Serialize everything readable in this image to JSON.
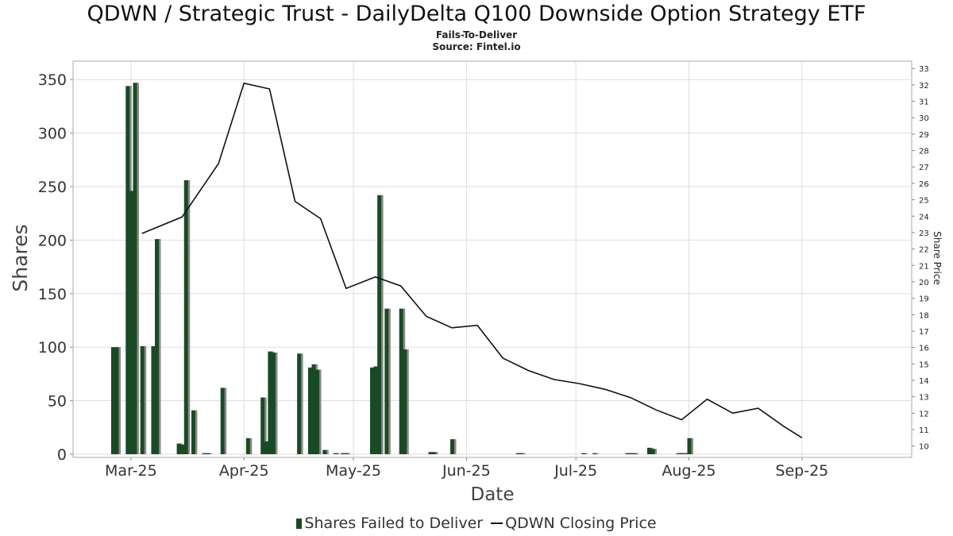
{
  "title": "QDWN / Strategic Trust - DailyDelta Q100 Downside Option Strategy ETF",
  "subtitle": "Fails-To-Deliver",
  "source": "Source: Fintel.io",
  "legend": {
    "bars_label": "Shares Failed to Deliver",
    "line_label": "QDWN Closing Price"
  },
  "colors": {
    "bar": "#1a4a25",
    "bar_shadow": "#8a8a8a",
    "line": "#111111",
    "grid": "#dddddd"
  },
  "chart_data": {
    "type": "bar",
    "xlabel": "Date",
    "ylabel": "Shares",
    "y2label": "Share Price",
    "ylim": [
      0,
      365
    ],
    "y2lim": [
      9.5,
      33.3
    ],
    "xlim": [
      "2025-02-14",
      "2025-09-30"
    ],
    "grid": true,
    "legend_position": "bottom",
    "yticks": [
      0,
      50,
      100,
      150,
      200,
      250,
      300,
      350
    ],
    "y2ticks": [
      10,
      11,
      12,
      13,
      14,
      15,
      16,
      17,
      18,
      19,
      20,
      21,
      22,
      23,
      24,
      25,
      26,
      27,
      28,
      29,
      30,
      31,
      32,
      33
    ],
    "xticks": [
      {
        "date": "2025-03-01",
        "label": "Mar-25"
      },
      {
        "date": "2025-04-01",
        "label": "Apr-25"
      },
      {
        "date": "2025-05-01",
        "label": "May-25"
      },
      {
        "date": "2025-06-01",
        "label": "Jun-25"
      },
      {
        "date": "2025-07-01",
        "label": "Jul-25"
      },
      {
        "date": "2025-08-01",
        "label": "Aug-25"
      },
      {
        "date": "2025-09-01",
        "label": "Sep-25"
      }
    ],
    "series": [
      {
        "name": "Shares Failed to Deliver",
        "type": "bar",
        "points": [
          {
            "date": "2025-02-24",
            "value": 100
          },
          {
            "date": "2025-02-25",
            "value": 100
          },
          {
            "date": "2025-02-28",
            "value": 344
          },
          {
            "date": "2025-03-01",
            "value": 246
          },
          {
            "date": "2025-03-02",
            "value": 347
          },
          {
            "date": "2025-03-04",
            "value": 101
          },
          {
            "date": "2025-03-07",
            "value": 101
          },
          {
            "date": "2025-03-08",
            "value": 201
          },
          {
            "date": "2025-03-14",
            "value": 10
          },
          {
            "date": "2025-03-15",
            "value": 9
          },
          {
            "date": "2025-03-16",
            "value": 256
          },
          {
            "date": "2025-03-18",
            "value": 41
          },
          {
            "date": "2025-03-21",
            "value": 1
          },
          {
            "date": "2025-03-22",
            "value": 1
          },
          {
            "date": "2025-03-26",
            "value": 62
          },
          {
            "date": "2025-04-02",
            "value": 15
          },
          {
            "date": "2025-04-06",
            "value": 53
          },
          {
            "date": "2025-04-07",
            "value": 12
          },
          {
            "date": "2025-04-08",
            "value": 96
          },
          {
            "date": "2025-04-09",
            "value": 95
          },
          {
            "date": "2025-04-16",
            "value": 94
          },
          {
            "date": "2025-04-19",
            "value": 81
          },
          {
            "date": "2025-04-20",
            "value": 84
          },
          {
            "date": "2025-04-21",
            "value": 79
          },
          {
            "date": "2025-04-23",
            "value": 4
          },
          {
            "date": "2025-04-26",
            "value": 1
          },
          {
            "date": "2025-04-28",
            "value": 1
          },
          {
            "date": "2025-04-29",
            "value": 1
          },
          {
            "date": "2025-05-06",
            "value": 81
          },
          {
            "date": "2025-05-07",
            "value": 82
          },
          {
            "date": "2025-05-08",
            "value": 242
          },
          {
            "date": "2025-05-10",
            "value": 136
          },
          {
            "date": "2025-05-14",
            "value": 136
          },
          {
            "date": "2025-05-15",
            "value": 98
          },
          {
            "date": "2025-05-22",
            "value": 2
          },
          {
            "date": "2025-05-23",
            "value": 2
          },
          {
            "date": "2025-05-28",
            "value": 14
          },
          {
            "date": "2025-06-15",
            "value": 1
          },
          {
            "date": "2025-06-16",
            "value": 1
          },
          {
            "date": "2025-07-03",
            "value": 1
          },
          {
            "date": "2025-07-06",
            "value": 1
          },
          {
            "date": "2025-07-15",
            "value": 1
          },
          {
            "date": "2025-07-16",
            "value": 1
          },
          {
            "date": "2025-07-17",
            "value": 1
          },
          {
            "date": "2025-07-21",
            "value": 6
          },
          {
            "date": "2025-07-22",
            "value": 5
          },
          {
            "date": "2025-07-29",
            "value": 1
          },
          {
            "date": "2025-07-30",
            "value": 1
          },
          {
            "date": "2025-07-31",
            "value": 1
          },
          {
            "date": "2025-08-01",
            "value": 15
          }
        ]
      },
      {
        "name": "QDWN Closing Price",
        "type": "line",
        "points": [
          {
            "date": "2025-03-04",
            "value": 22.95
          },
          {
            "date": "2025-03-15",
            "value": 23.95
          },
          {
            "date": "2025-03-25",
            "value": 27.2
          },
          {
            "date": "2025-04-01",
            "value": 32.1
          },
          {
            "date": "2025-04-08",
            "value": 31.75
          },
          {
            "date": "2025-04-15",
            "value": 24.9
          },
          {
            "date": "2025-04-22",
            "value": 23.85
          },
          {
            "date": "2025-04-29",
            "value": 19.6
          },
          {
            "date": "2025-05-07",
            "value": 20.3
          },
          {
            "date": "2025-05-14",
            "value": 19.75
          },
          {
            "date": "2025-05-21",
            "value": 17.9
          },
          {
            "date": "2025-05-28",
            "value": 17.2
          },
          {
            "date": "2025-06-04",
            "value": 17.35
          },
          {
            "date": "2025-06-11",
            "value": 15.35
          },
          {
            "date": "2025-06-18",
            "value": 14.6
          },
          {
            "date": "2025-06-25",
            "value": 14.05
          },
          {
            "date": "2025-07-02",
            "value": 13.8
          },
          {
            "date": "2025-07-09",
            "value": 13.45
          },
          {
            "date": "2025-07-16",
            "value": 12.95
          },
          {
            "date": "2025-07-23",
            "value": 12.2
          },
          {
            "date": "2025-07-30",
            "value": 11.6
          },
          {
            "date": "2025-08-06",
            "value": 12.85
          },
          {
            "date": "2025-08-13",
            "value": 12.0
          },
          {
            "date": "2025-08-20",
            "value": 12.3
          },
          {
            "date": "2025-08-27",
            "value": 11.2
          },
          {
            "date": "2025-09-01",
            "value": 10.5
          }
        ]
      }
    ]
  }
}
